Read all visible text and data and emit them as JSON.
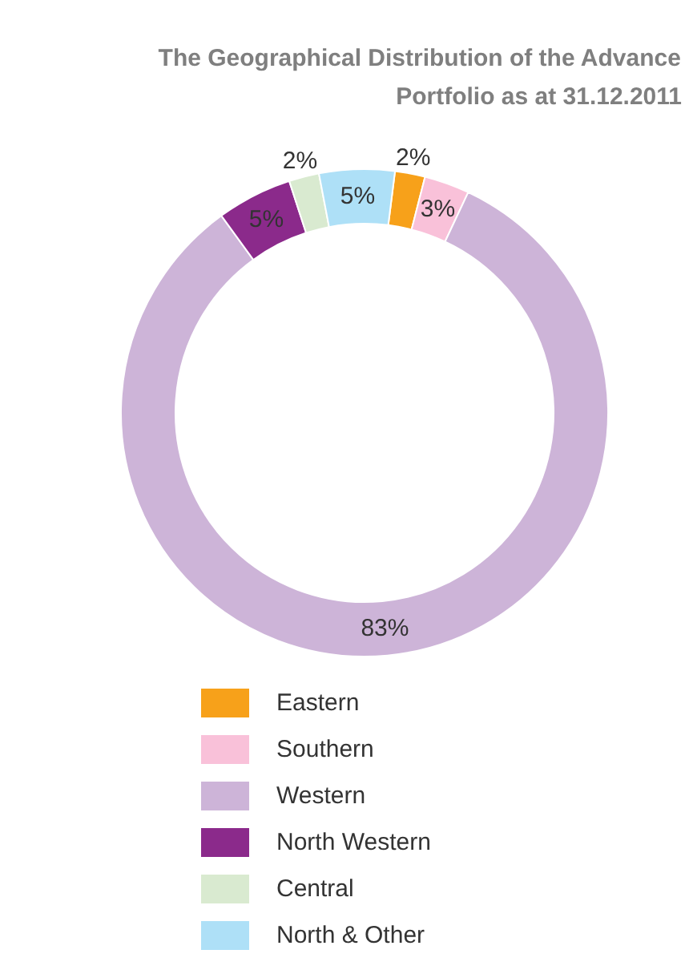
{
  "chart_data": {
    "type": "donut",
    "title": "The Geographical Distribution of the Advance Portfolio as at 31.12.2011",
    "categories": [
      "Eastern",
      "Southern",
      "Western",
      "North Western",
      "Central",
      "North & Other"
    ],
    "values": [
      2,
      3,
      83,
      5,
      2,
      5
    ],
    "colors": [
      "#f7a11a",
      "#f9c1d9",
      "#cdb4d8",
      "#8b2a8b",
      "#d9ead0",
      "#aee0f7"
    ],
    "value_labels": [
      "2%",
      "3%",
      "83%",
      "5%",
      "2%",
      "5%"
    ],
    "legend": "bottom"
  }
}
